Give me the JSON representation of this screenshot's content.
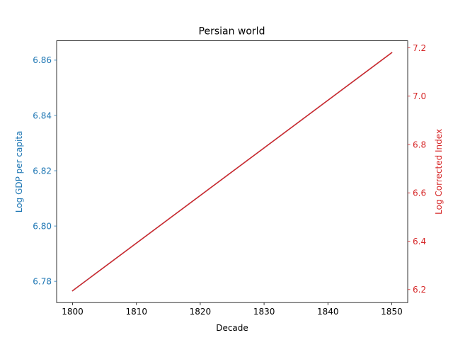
{
  "chart_data": {
    "type": "line",
    "title": "Persian world",
    "xlabel": "Decade",
    "x": [
      1800,
      1850
    ],
    "xticks": [
      1800,
      1810,
      1820,
      1830,
      1840,
      1850
    ],
    "xlim": [
      1797.5,
      1852.5
    ],
    "series": [
      {
        "name": "",
        "axis": "left",
        "ylabel": "Log GDP per capita",
        "values": [
          6.7766,
          6.8627
        ],
        "color": "#1f77b4",
        "ylim": [
          6.7723,
          6.867
        ],
        "yticks": [
          "6.78",
          "6.80",
          "6.82",
          "6.84",
          "6.86"
        ]
      },
      {
        "name": "",
        "axis": "right",
        "ylabel": "Log Corrected Index",
        "values": [
          6.195,
          7.18
        ],
        "color": "#d62728",
        "ylim": [
          6.146,
          7.229
        ],
        "yticks": [
          "6.2",
          "6.4",
          "6.6",
          "6.8",
          "7.0",
          "7.2"
        ]
      }
    ],
    "grid": false,
    "legend": "none"
  }
}
